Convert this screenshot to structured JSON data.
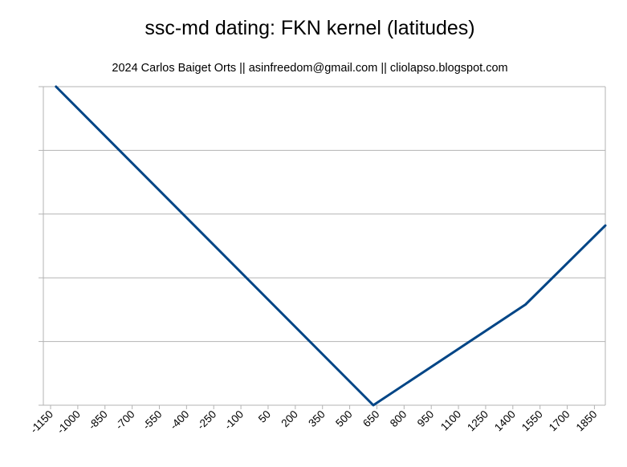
{
  "chart_data": {
    "type": "line",
    "title": "ssc-md dating: FKN kernel (latitudes)",
    "subtitle": "2024 Carlos Baiget Orts || asinfreedom@gmail.com || cliolapso.blogspot.com",
    "xlabel": "",
    "ylabel": "",
    "x_tick_labels": [
      "-1150",
      "-1000",
      "-850",
      "-700",
      "-550",
      "-400",
      "-250",
      "-100",
      "50",
      "200",
      "350",
      "500",
      "650",
      "800",
      "950",
      "1100",
      "1250",
      "1400",
      "1550",
      "1700",
      "1850"
    ],
    "x_range": [
      -1150,
      1950
    ],
    "y_range": [
      0,
      5
    ],
    "y_tick_labels_visible": false,
    "grid": true,
    "series": [
      {
        "color": "#004586",
        "points": [
          {
            "x": -1080,
            "y": 5.0
          },
          {
            "x": 670,
            "y": 0.0
          },
          {
            "x": 1510,
            "y": 1.58
          },
          {
            "x": 1950,
            "y": 2.82
          }
        ]
      }
    ]
  }
}
